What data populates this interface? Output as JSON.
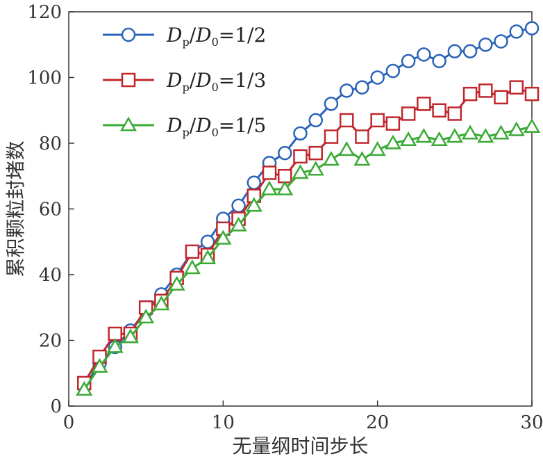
{
  "chart_data": {
    "type": "line",
    "xlabel": "无量纲时间步长",
    "ylabel": "累积颗粒封堵数",
    "xlim": [
      0,
      30
    ],
    "ylim": [
      0,
      120
    ],
    "xticks": [
      0,
      10,
      20,
      30
    ],
    "yticks": [
      0,
      20,
      40,
      60,
      80,
      100,
      120
    ],
    "legend_position": "top-left",
    "grid": false,
    "series": [
      {
        "legend": {
          "d": "D",
          "sub_p": "p",
          "slash": "/",
          "sub_0": "0",
          "ratio": "=1/2"
        },
        "color": "#2a63b8",
        "marker": "circle",
        "x": [
          1,
          2,
          3,
          4,
          5,
          6,
          7,
          8,
          9,
          10,
          11,
          12,
          13,
          14,
          15,
          16,
          17,
          18,
          19,
          20,
          21,
          22,
          23,
          24,
          25,
          26,
          27,
          28,
          29,
          30
        ],
        "y": [
          6,
          13,
          18,
          23,
          29,
          34,
          40,
          47,
          50,
          57,
          61,
          68,
          74,
          77,
          83,
          87,
          92,
          96,
          97,
          100,
          102,
          105,
          107,
          105,
          108,
          108,
          110,
          111,
          114,
          115
        ]
      },
      {
        "legend": {
          "d": "D",
          "sub_p": "p",
          "slash": "/",
          "sub_0": "0",
          "ratio": "=1/3"
        },
        "color": "#c0272d",
        "marker": "square",
        "x": [
          1,
          2,
          3,
          4,
          5,
          6,
          7,
          8,
          9,
          10,
          11,
          12,
          13,
          14,
          15,
          16,
          17,
          18,
          19,
          20,
          21,
          22,
          23,
          24,
          25,
          26,
          27,
          28,
          29,
          30
        ],
        "y": [
          7,
          15,
          22,
          22,
          30,
          32,
          39,
          47,
          46,
          54,
          57,
          64,
          71,
          70,
          76,
          77,
          82,
          87,
          82,
          87,
          86,
          89,
          92,
          90,
          89,
          95,
          96,
          94,
          97,
          95
        ]
      },
      {
        "legend": {
          "d": "D",
          "sub_p": "p",
          "slash": "/",
          "sub_0": "0",
          "ratio": "=1/5"
        },
        "color": "#3aaa35",
        "marker": "triangle",
        "x": [
          1,
          2,
          3,
          4,
          5,
          6,
          7,
          8,
          9,
          10,
          11,
          12,
          13,
          14,
          15,
          16,
          17,
          18,
          19,
          20,
          21,
          22,
          23,
          24,
          25,
          26,
          27,
          28,
          29,
          30
        ],
        "y": [
          5,
          12,
          18,
          21,
          27,
          31,
          37,
          42,
          45,
          51,
          55,
          61,
          66,
          66,
          71,
          72,
          75,
          78,
          75,
          78,
          80,
          81,
          82,
          81,
          82,
          83,
          82,
          83,
          84,
          85
        ]
      }
    ]
  }
}
